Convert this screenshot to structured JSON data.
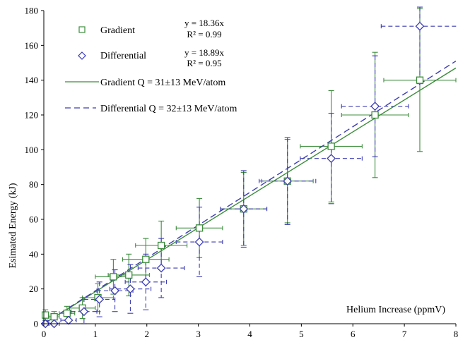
{
  "chart_data": {
    "type": "scatter",
    "title": "",
    "xlabel": "Helium Increase (ppmV)",
    "ylabel": "Esimated Energy (kJ)",
    "xlim": [
      0,
      8
    ],
    "ylim": [
      0,
      180
    ],
    "x_ticks": [
      "0",
      "1",
      "2",
      "3",
      "4",
      "5",
      "6",
      "7",
      "8"
    ],
    "y_ticks": [
      "0",
      "20",
      "40",
      "60",
      "80",
      "100",
      "120",
      "140",
      "160",
      "180"
    ],
    "grid": false,
    "legend_position": "top-left",
    "series": [
      {
        "name": "Gradient",
        "marker": "square",
        "color": "#3c8c3c",
        "fit": "y = 18.36x",
        "r2": "R² = 0.99",
        "points": [
          {
            "x": 0.03,
            "y": 5,
            "xerr": 0.05,
            "yerr": 3
          },
          {
            "x": 0.2,
            "y": 4,
            "xerr": 0.1,
            "yerr": 3
          },
          {
            "x": 0.45,
            "y": 6,
            "xerr": 0.15,
            "yerr": 4
          },
          {
            "x": 0.75,
            "y": 9,
            "xerr": 0.25,
            "yerr": 6
          },
          {
            "x": 1.05,
            "y": 15,
            "xerr": 0.3,
            "yerr": 8
          },
          {
            "x": 1.35,
            "y": 27,
            "xerr": 0.35,
            "yerr": 10
          },
          {
            "x": 1.65,
            "y": 28,
            "xerr": 0.4,
            "yerr": 12
          },
          {
            "x": 1.98,
            "y": 37,
            "xerr": 0.45,
            "yerr": 12
          },
          {
            "x": 2.28,
            "y": 45,
            "xerr": 0.5,
            "yerr": 14
          },
          {
            "x": 3.02,
            "y": 55,
            "xerr": 0.45,
            "yerr": 17
          },
          {
            "x": 3.88,
            "y": 66,
            "xerr": 0.45,
            "yerr": 21
          },
          {
            "x": 4.73,
            "y": 82,
            "xerr": 0.5,
            "yerr": 24
          },
          {
            "x": 5.58,
            "y": 102,
            "xerr": 0.6,
            "yerr": 32
          },
          {
            "x": 6.43,
            "y": 120,
            "xerr": 0.65,
            "yerr": 36
          },
          {
            "x": 7.3,
            "y": 140,
            "xerr": 0.7,
            "yerr": 41
          }
        ]
      },
      {
        "name": "Differential",
        "marker": "diamond",
        "color": "#3c3cb4",
        "fit": "y = 18.89x",
        "r2": "R² = 0.95",
        "points": [
          {
            "x": 0.03,
            "y": 0,
            "xerr": 0.05,
            "yerr": 2
          },
          {
            "x": 0.2,
            "y": 0,
            "xerr": 0.1,
            "yerr": 3
          },
          {
            "x": 0.48,
            "y": 2,
            "xerr": 0.15,
            "yerr": 4
          },
          {
            "x": 0.78,
            "y": 7,
            "xerr": 0.25,
            "yerr": 8
          },
          {
            "x": 1.08,
            "y": 14,
            "xerr": 0.3,
            "yerr": 10
          },
          {
            "x": 1.38,
            "y": 19,
            "xerr": 0.35,
            "yerr": 12
          },
          {
            "x": 1.68,
            "y": 20,
            "xerr": 0.4,
            "yerr": 14
          },
          {
            "x": 1.98,
            "y": 24,
            "xerr": 0.4,
            "yerr": 16
          },
          {
            "x": 2.28,
            "y": 32,
            "xerr": 0.45,
            "yerr": 17
          },
          {
            "x": 3.02,
            "y": 47,
            "xerr": 0.45,
            "yerr": 20
          },
          {
            "x": 3.88,
            "y": 66,
            "xerr": 0.45,
            "yerr": 22
          },
          {
            "x": 4.73,
            "y": 82,
            "xerr": 0.55,
            "yerr": 25
          },
          {
            "x": 5.58,
            "y": 95,
            "xerr": 0.6,
            "yerr": 26
          },
          {
            "x": 6.43,
            "y": 125,
            "xerr": 0.65,
            "yerr": 29
          },
          {
            "x": 7.3,
            "y": 171,
            "xerr": 0.75,
            "yerr": 33
          }
        ]
      }
    ],
    "fits": [
      {
        "name": "Gradient Q = 31±13 MeV/atom",
        "style": "solid",
        "color": "#3c8c3c",
        "x": [
          0,
          8
        ],
        "y": [
          0,
          147
        ]
      },
      {
        "name": "Differential Q = 32±13 MeV/atom",
        "style": "dashed",
        "color": "#3c3cb4",
        "x": [
          0,
          8
        ],
        "y": [
          0,
          151
        ]
      }
    ]
  }
}
